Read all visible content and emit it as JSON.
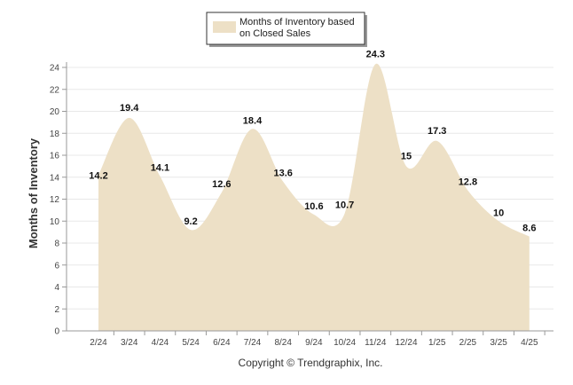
{
  "chart_data": {
    "type": "area",
    "categories": [
      "2/24",
      "3/24",
      "4/24",
      "5/24",
      "6/24",
      "7/24",
      "8/24",
      "9/24",
      "10/24",
      "11/24",
      "12/24",
      "1/25",
      "2/25",
      "3/25",
      "4/25"
    ],
    "series": [
      {
        "name": "Months of Inventory based on Closed Sales",
        "values": [
          14.2,
          19.4,
          14.1,
          9.2,
          12.6,
          18.4,
          13.6,
          10.6,
          10.7,
          24.3,
          15,
          17.3,
          12.8,
          10,
          8.6
        ],
        "data_labels": [
          "14.2",
          "19.4",
          "14.1",
          "9.2",
          "12.6",
          "18.4",
          "13.6",
          "10.6",
          "10.7",
          "24.3",
          "15",
          "17.3",
          "12.8",
          "10",
          "8.6"
        ]
      }
    ],
    "legend": {
      "lines": [
        "Months of Inventory based",
        "on Closed Sales"
      ],
      "position": "top-center"
    },
    "ylabel": "Months of Inventory",
    "ylim": [
      0,
      24
    ],
    "yticks": [
      "0",
      "2",
      "4",
      "6",
      "8",
      "10",
      "12",
      "14",
      "16",
      "18",
      "20",
      "22",
      "24"
    ],
    "grid": true,
    "colors": {
      "fill": "#ede0c6",
      "grid": "#e8e8e8",
      "axis": "#999999"
    }
  },
  "footer": {
    "copyright": "Copyright © Trendgraphix, Inc."
  }
}
